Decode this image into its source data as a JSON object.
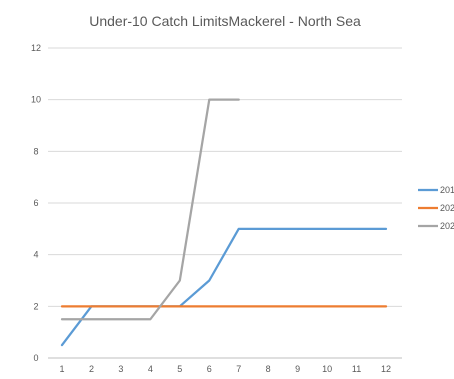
{
  "chart_data": {
    "type": "line",
    "title": "Under-10 Catch LimitsMackerel - North Sea",
    "xlabel": "",
    "ylabel": "",
    "x": [
      1,
      2,
      3,
      4,
      5,
      6,
      7,
      8,
      9,
      10,
      11,
      12
    ],
    "ylim": [
      0,
      12
    ],
    "yticks": [
      0,
      2,
      4,
      6,
      8,
      10,
      12
    ],
    "grid": true,
    "legend_position": "right",
    "series": [
      {
        "name": "201",
        "color": "#5b9bd5",
        "values": [
          0.5,
          2,
          2,
          2,
          2,
          3,
          5,
          5,
          5,
          5,
          5,
          5
        ]
      },
      {
        "name": "202",
        "color": "#ed7d31",
        "values": [
          2,
          2,
          2,
          2,
          2,
          2,
          2,
          2,
          2,
          2,
          2,
          2
        ]
      },
      {
        "name": "202",
        "color": "#a5a5a5",
        "values": [
          1.5,
          1.5,
          1.5,
          1.5,
          3,
          10,
          10,
          null,
          null,
          null,
          null,
          null
        ]
      }
    ]
  }
}
